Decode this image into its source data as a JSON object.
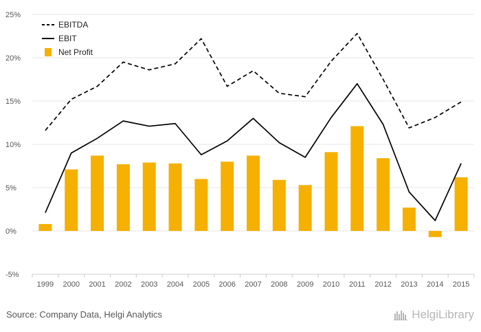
{
  "source_text": "Source: Company Data, Helgi Analytics",
  "logo": {
    "text": "HelgiLibrary",
    "icon": "helgi-library-logo-icon",
    "color": "#b5b5b5"
  },
  "colors": {
    "bar": "#f5b000",
    "line": "#000000",
    "grid": "#e6e6e6",
    "axis": "#cccccc"
  },
  "chart_data": {
    "type": "bar",
    "categories": [
      "1999",
      "2000",
      "2001",
      "2002",
      "2003",
      "2004",
      "2005",
      "2006",
      "2007",
      "2008",
      "2009",
      "2010",
      "2011",
      "2012",
      "2013",
      "2014",
      "2015"
    ],
    "ylim": [
      -5,
      25
    ],
    "yticks": [
      -5,
      0,
      5,
      10,
      15,
      20,
      25
    ],
    "ytick_labels": [
      "-5%",
      "0%",
      "5%",
      "10%",
      "15%",
      "20%",
      "25%"
    ],
    "grid": true,
    "legend": "top-left",
    "series": [
      {
        "name": "EBITDA",
        "type": "line",
        "style": "dashed",
        "values": [
          11.6,
          15.2,
          16.7,
          19.5,
          18.6,
          19.3,
          22.2,
          16.7,
          18.5,
          15.9,
          15.5,
          19.6,
          22.8,
          17.5,
          11.9,
          13.1,
          14.9
        ]
      },
      {
        "name": "EBIT",
        "type": "line",
        "style": "solid",
        "values": [
          2.1,
          9.0,
          10.7,
          12.7,
          12.1,
          12.4,
          8.8,
          10.4,
          13.0,
          10.2,
          8.5,
          13.1,
          17.0,
          12.3,
          4.5,
          1.2,
          7.8
        ]
      },
      {
        "name": "Net Profit",
        "type": "bar",
        "values": [
          0.8,
          7.1,
          8.7,
          7.7,
          7.9,
          7.8,
          6.0,
          8.0,
          8.7,
          5.9,
          5.3,
          9.1,
          12.1,
          8.4,
          2.7,
          -0.7,
          6.2
        ]
      }
    ]
  }
}
